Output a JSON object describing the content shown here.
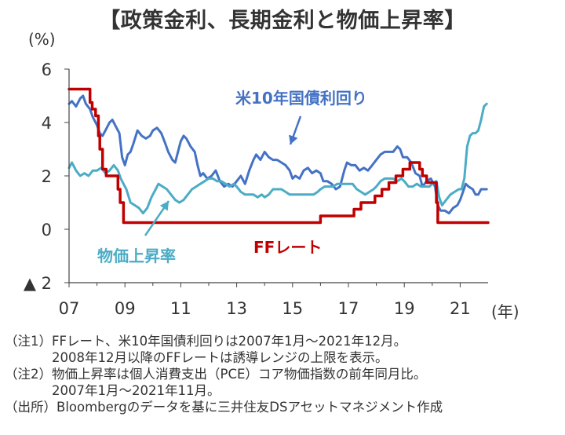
{
  "chart_data": {
    "type": "line",
    "title": "【政策金利、長期金利と物価上昇率】",
    "ylabel": "(%)",
    "xlabel": "(年)",
    "ylim": [
      -2,
      6
    ],
    "xlim": [
      2007,
      2022
    ],
    "y_ticks": [
      {
        "value": 6,
        "label": "6"
      },
      {
        "value": 4,
        "label": "4"
      },
      {
        "value": 2,
        "label": "2"
      },
      {
        "value": 0,
        "label": "0"
      },
      {
        "value": -2,
        "label": "▲ 2"
      }
    ],
    "x_ticks": [
      {
        "value": 2007,
        "label": "07"
      },
      {
        "value": 2009,
        "label": "09"
      },
      {
        "value": 2011,
        "label": "11"
      },
      {
        "value": 2013,
        "label": "13"
      },
      {
        "value": 2015,
        "label": "15"
      },
      {
        "value": 2017,
        "label": "17"
      },
      {
        "value": 2019,
        "label": "19"
      },
      {
        "value": 2021,
        "label": "21"
      }
    ],
    "series": [
      {
        "name": "FFレート",
        "color": "#C00000",
        "points": [
          [
            2007.0,
            5.25
          ],
          [
            2007.7,
            5.25
          ],
          [
            2007.75,
            4.75
          ],
          [
            2007.83,
            4.5
          ],
          [
            2007.95,
            4.25
          ],
          [
            2008.05,
            3.5
          ],
          [
            2008.1,
            3.0
          ],
          [
            2008.2,
            2.25
          ],
          [
            2008.33,
            2.0
          ],
          [
            2008.75,
            1.5
          ],
          [
            2008.83,
            1.0
          ],
          [
            2008.95,
            0.25
          ],
          [
            2015.95,
            0.25
          ],
          [
            2016.0,
            0.5
          ],
          [
            2016.95,
            0.5
          ],
          [
            2017.2,
            0.75
          ],
          [
            2017.45,
            1.0
          ],
          [
            2017.95,
            1.25
          ],
          [
            2018.2,
            1.5
          ],
          [
            2018.45,
            1.75
          ],
          [
            2018.7,
            2.0
          ],
          [
            2018.95,
            2.25
          ],
          [
            2019.2,
            2.5
          ],
          [
            2019.55,
            2.25
          ],
          [
            2019.65,
            2.0
          ],
          [
            2019.8,
            1.75
          ],
          [
            2020.15,
            1.0
          ],
          [
            2020.2,
            0.25
          ],
          [
            2022.0,
            0.25
          ]
        ]
      },
      {
        "name": "米10年国債利回り",
        "color": "#4472C4",
        "points": [
          [
            2007.0,
            4.7
          ],
          [
            2007.1,
            4.8
          ],
          [
            2007.25,
            4.6
          ],
          [
            2007.4,
            4.9
          ],
          [
            2007.5,
            5.0
          ],
          [
            2007.6,
            4.7
          ],
          [
            2007.75,
            4.5
          ],
          [
            2007.85,
            4.2
          ],
          [
            2008.0,
            3.9
          ],
          [
            2008.1,
            3.6
          ],
          [
            2008.2,
            3.5
          ],
          [
            2008.35,
            3.8
          ],
          [
            2008.45,
            4.0
          ],
          [
            2008.55,
            4.1
          ],
          [
            2008.7,
            3.8
          ],
          [
            2008.8,
            3.6
          ],
          [
            2008.9,
            2.7
          ],
          [
            2009.0,
            2.4
          ],
          [
            2009.1,
            2.8
          ],
          [
            2009.2,
            2.9
          ],
          [
            2009.3,
            3.2
          ],
          [
            2009.45,
            3.7
          ],
          [
            2009.6,
            3.5
          ],
          [
            2009.75,
            3.4
          ],
          [
            2009.9,
            3.5
          ],
          [
            2010.0,
            3.7
          ],
          [
            2010.15,
            3.8
          ],
          [
            2010.3,
            3.6
          ],
          [
            2010.45,
            3.2
          ],
          [
            2010.55,
            2.9
          ],
          [
            2010.7,
            2.6
          ],
          [
            2010.8,
            2.5
          ],
          [
            2010.9,
            2.9
          ],
          [
            2011.0,
            3.3
          ],
          [
            2011.1,
            3.5
          ],
          [
            2011.2,
            3.4
          ],
          [
            2011.35,
            3.1
          ],
          [
            2011.5,
            2.9
          ],
          [
            2011.6,
            2.4
          ],
          [
            2011.7,
            2.0
          ],
          [
            2011.8,
            2.1
          ],
          [
            2011.95,
            1.9
          ],
          [
            2012.1,
            2.0
          ],
          [
            2012.25,
            2.2
          ],
          [
            2012.4,
            1.8
          ],
          [
            2012.55,
            1.6
          ],
          [
            2012.7,
            1.7
          ],
          [
            2012.85,
            1.6
          ],
          [
            2013.0,
            1.8
          ],
          [
            2013.15,
            2.0
          ],
          [
            2013.3,
            1.7
          ],
          [
            2013.45,
            2.2
          ],
          [
            2013.6,
            2.6
          ],
          [
            2013.7,
            2.8
          ],
          [
            2013.85,
            2.6
          ],
          [
            2014.0,
            2.9
          ],
          [
            2014.15,
            2.7
          ],
          [
            2014.3,
            2.6
          ],
          [
            2014.45,
            2.6
          ],
          [
            2014.6,
            2.5
          ],
          [
            2014.75,
            2.4
          ],
          [
            2014.9,
            2.2
          ],
          [
            2015.0,
            1.9
          ],
          [
            2015.1,
            2.0
          ],
          [
            2015.25,
            1.9
          ],
          [
            2015.4,
            2.2
          ],
          [
            2015.55,
            2.3
          ],
          [
            2015.7,
            2.1
          ],
          [
            2015.85,
            2.2
          ],
          [
            2016.0,
            2.1
          ],
          [
            2016.1,
            1.8
          ],
          [
            2016.25,
            1.8
          ],
          [
            2016.4,
            1.7
          ],
          [
            2016.55,
            1.5
          ],
          [
            2016.7,
            1.6
          ],
          [
            2016.85,
            2.2
          ],
          [
            2016.95,
            2.5
          ],
          [
            2017.1,
            2.4
          ],
          [
            2017.25,
            2.4
          ],
          [
            2017.4,
            2.2
          ],
          [
            2017.55,
            2.3
          ],
          [
            2017.7,
            2.2
          ],
          [
            2017.85,
            2.4
          ],
          [
            2018.0,
            2.6
          ],
          [
            2018.15,
            2.8
          ],
          [
            2018.3,
            2.9
          ],
          [
            2018.45,
            2.9
          ],
          [
            2018.6,
            2.9
          ],
          [
            2018.75,
            3.1
          ],
          [
            2018.85,
            3.0
          ],
          [
            2018.95,
            2.7
          ],
          [
            2019.1,
            2.7
          ],
          [
            2019.25,
            2.5
          ],
          [
            2019.4,
            2.1
          ],
          [
            2019.55,
            2.0
          ],
          [
            2019.65,
            1.6
          ],
          [
            2019.8,
            1.8
          ],
          [
            2019.95,
            1.9
          ],
          [
            2020.1,
            1.6
          ],
          [
            2020.2,
            0.9
          ],
          [
            2020.3,
            0.7
          ],
          [
            2020.45,
            0.7
          ],
          [
            2020.6,
            0.6
          ],
          [
            2020.75,
            0.8
          ],
          [
            2020.9,
            0.9
          ],
          [
            2021.0,
            1.1
          ],
          [
            2021.1,
            1.4
          ],
          [
            2021.2,
            1.7
          ],
          [
            2021.3,
            1.6
          ],
          [
            2021.45,
            1.5
          ],
          [
            2021.55,
            1.3
          ],
          [
            2021.65,
            1.3
          ],
          [
            2021.75,
            1.5
          ],
          [
            2021.85,
            1.5
          ],
          [
            2021.95,
            1.5
          ]
        ]
      },
      {
        "name": "物価上昇率",
        "color": "#4BACC6",
        "points": [
          [
            2007.0,
            2.3
          ],
          [
            2007.1,
            2.5
          ],
          [
            2007.25,
            2.2
          ],
          [
            2007.4,
            2.0
          ],
          [
            2007.55,
            2.1
          ],
          [
            2007.7,
            2.0
          ],
          [
            2007.85,
            2.2
          ],
          [
            2008.0,
            2.2
          ],
          [
            2008.15,
            2.3
          ],
          [
            2008.3,
            2.1
          ],
          [
            2008.45,
            2.2
          ],
          [
            2008.6,
            2.4
          ],
          [
            2008.75,
            2.2
          ],
          [
            2008.85,
            1.9
          ],
          [
            2008.95,
            1.7
          ],
          [
            2009.05,
            1.5
          ],
          [
            2009.2,
            1.0
          ],
          [
            2009.35,
            0.9
          ],
          [
            2009.5,
            0.8
          ],
          [
            2009.65,
            0.6
          ],
          [
            2009.8,
            0.8
          ],
          [
            2009.95,
            1.2
          ],
          [
            2010.1,
            1.5
          ],
          [
            2010.2,
            1.7
          ],
          [
            2010.35,
            1.6
          ],
          [
            2010.5,
            1.5
          ],
          [
            2010.65,
            1.3
          ],
          [
            2010.8,
            1.1
          ],
          [
            2010.95,
            1.0
          ],
          [
            2011.1,
            1.1
          ],
          [
            2011.25,
            1.3
          ],
          [
            2011.4,
            1.5
          ],
          [
            2011.55,
            1.6
          ],
          [
            2011.7,
            1.7
          ],
          [
            2011.85,
            1.8
          ],
          [
            2012.0,
            1.9
          ],
          [
            2012.15,
            1.9
          ],
          [
            2012.3,
            1.8
          ],
          [
            2012.45,
            1.8
          ],
          [
            2012.6,
            1.7
          ],
          [
            2012.75,
            1.6
          ],
          [
            2012.9,
            1.7
          ],
          [
            2013.0,
            1.6
          ],
          [
            2013.15,
            1.4
          ],
          [
            2013.3,
            1.3
          ],
          [
            2013.45,
            1.3
          ],
          [
            2013.6,
            1.3
          ],
          [
            2013.75,
            1.2
          ],
          [
            2013.9,
            1.3
          ],
          [
            2014.0,
            1.2
          ],
          [
            2014.15,
            1.3
          ],
          [
            2014.3,
            1.5
          ],
          [
            2014.45,
            1.5
          ],
          [
            2014.6,
            1.5
          ],
          [
            2014.75,
            1.4
          ],
          [
            2014.9,
            1.3
          ],
          [
            2015.0,
            1.3
          ],
          [
            2015.15,
            1.3
          ],
          [
            2015.3,
            1.3
          ],
          [
            2015.45,
            1.3
          ],
          [
            2015.6,
            1.3
          ],
          [
            2015.75,
            1.3
          ],
          [
            2015.9,
            1.4
          ],
          [
            2016.0,
            1.5
          ],
          [
            2016.15,
            1.6
          ],
          [
            2016.3,
            1.6
          ],
          [
            2016.45,
            1.6
          ],
          [
            2016.6,
            1.7
          ],
          [
            2016.75,
            1.7
          ],
          [
            2016.9,
            1.7
          ],
          [
            2017.0,
            1.7
          ],
          [
            2017.15,
            1.7
          ],
          [
            2017.3,
            1.5
          ],
          [
            2017.45,
            1.4
          ],
          [
            2017.6,
            1.3
          ],
          [
            2017.75,
            1.4
          ],
          [
            2017.9,
            1.5
          ],
          [
            2018.0,
            1.6
          ],
          [
            2018.15,
            1.8
          ],
          [
            2018.3,
            1.9
          ],
          [
            2018.45,
            1.9
          ],
          [
            2018.6,
            1.9
          ],
          [
            2018.75,
            1.8
          ],
          [
            2018.9,
            1.9
          ],
          [
            2019.0,
            1.8
          ],
          [
            2019.15,
            1.6
          ],
          [
            2019.3,
            1.6
          ],
          [
            2019.45,
            1.7
          ],
          [
            2019.6,
            1.6
          ],
          [
            2019.75,
            1.6
          ],
          [
            2019.9,
            1.6
          ],
          [
            2020.0,
            1.7
          ],
          [
            2020.15,
            1.8
          ],
          [
            2020.25,
            1.2
          ],
          [
            2020.35,
            0.9
          ],
          [
            2020.5,
            1.1
          ],
          [
            2020.65,
            1.3
          ],
          [
            2020.8,
            1.4
          ],
          [
            2020.95,
            1.5
          ],
          [
            2021.05,
            1.5
          ],
          [
            2021.15,
            1.9
          ],
          [
            2021.25,
            3.1
          ],
          [
            2021.35,
            3.5
          ],
          [
            2021.45,
            3.6
          ],
          [
            2021.55,
            3.6
          ],
          [
            2021.65,
            3.7
          ],
          [
            2021.75,
            4.1
          ],
          [
            2021.85,
            4.6
          ],
          [
            2021.95,
            4.7
          ]
        ]
      }
    ],
    "annotations": [
      {
        "text": "米10年国債利回り",
        "series": "米10年国債利回り"
      },
      {
        "text": "物価上昇率",
        "series": "物価上昇率"
      },
      {
        "text": "FFレート",
        "series": "FFレート"
      }
    ]
  },
  "notes": [
    {
      "label": "（注1）",
      "lines": [
        "FFレート、米10年国債利回りは2007年1月～2021年12月。",
        "2008年12月以降のFFレートは誘導レンジの上限を表示。"
      ]
    },
    {
      "label": "（注2）",
      "lines": [
        "物価上昇率は個人消費支出（PCE）コア物価指数の前年同月比。",
        "2007年1月～2021年11月。"
      ]
    },
    {
      "label": "（出所）",
      "lines": [
        "Bloombergのデータを基に三井住友DSアセットマネジメント作成"
      ]
    }
  ]
}
